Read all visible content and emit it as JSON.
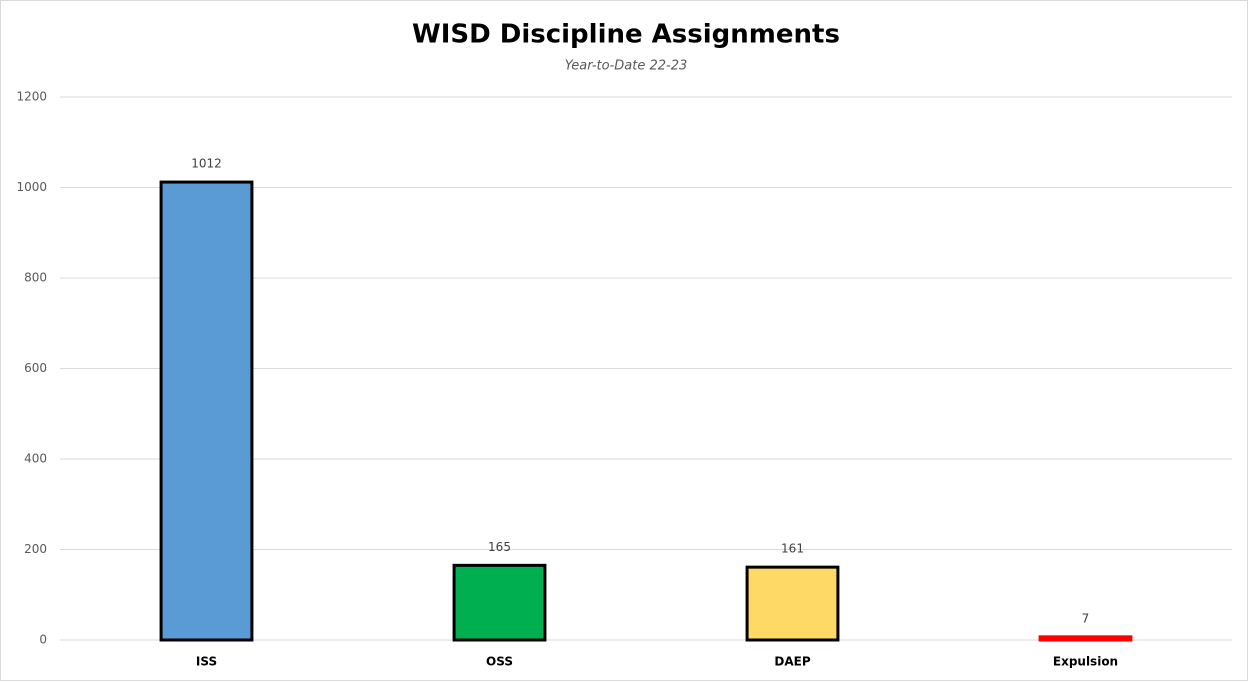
{
  "chart_data": {
    "type": "bar",
    "title": "WISD Discipline Assignments",
    "subtitle": "Year-to-Date 22-23",
    "categories": [
      "ISS",
      "OSS",
      "DAEP",
      "Expulsion"
    ],
    "values": [
      1012,
      165,
      161,
      7
    ],
    "colors": [
      "#5b9bd5",
      "#00b050",
      "#ffd966",
      "#ff0000"
    ],
    "edgecolors": [
      "#000000",
      "#000000",
      "#000000",
      "#ff0000"
    ],
    "ylim": [
      0,
      1200
    ],
    "yticks": [
      0,
      200,
      400,
      600,
      800,
      1000,
      1200
    ],
    "grid": true
  }
}
